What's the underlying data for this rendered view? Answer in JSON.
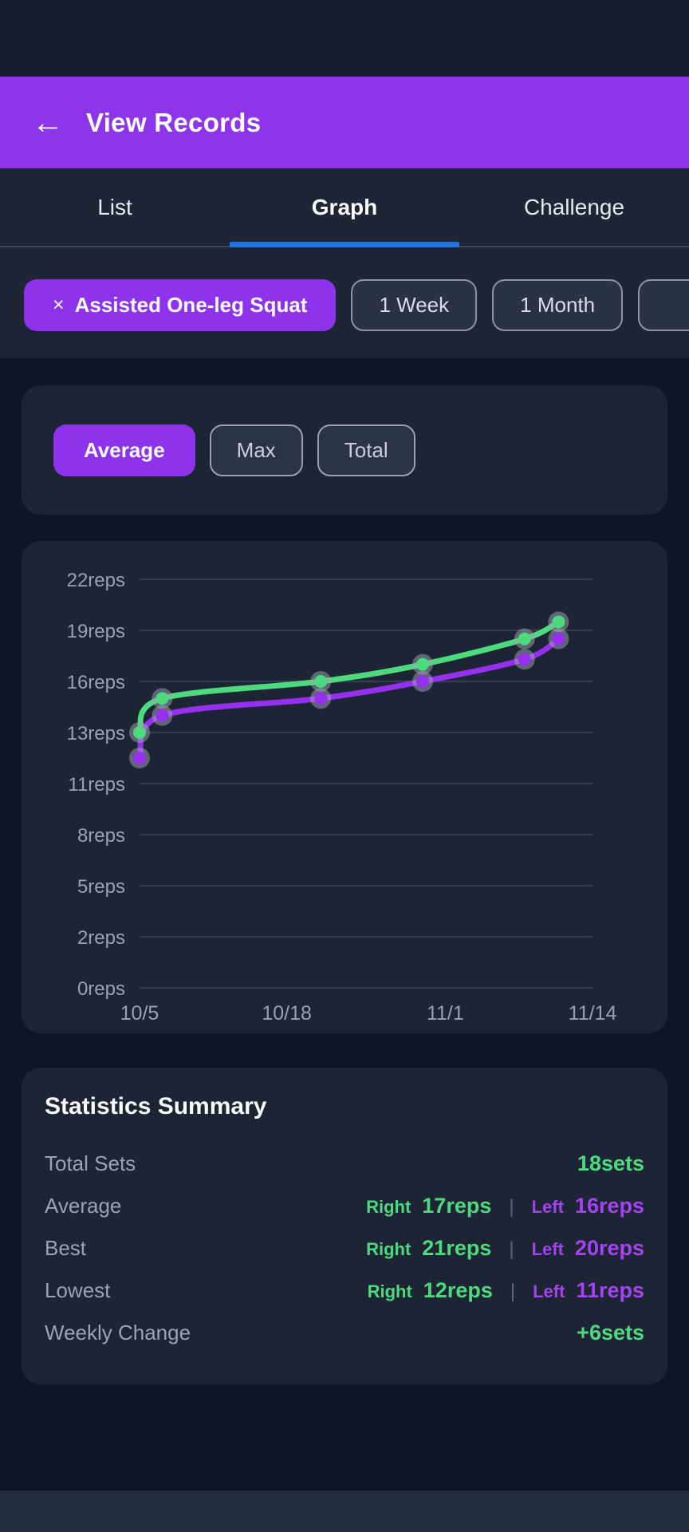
{
  "header": {
    "back_icon": "←",
    "title": "View Records"
  },
  "tabs": [
    {
      "label": "List",
      "active": false
    },
    {
      "label": "Graph",
      "active": true
    },
    {
      "label": "Challenge",
      "active": false
    }
  ],
  "filters": {
    "exercise_chip": {
      "close_icon": "×",
      "label": "Assisted One-leg Squat"
    },
    "period_chips": [
      "1 Week",
      "1 Month"
    ],
    "partial_chip_visible": true
  },
  "metric_toggle": [
    {
      "label": "Average",
      "active": true
    },
    {
      "label": "Max",
      "active": false
    },
    {
      "label": "Total",
      "active": false
    }
  ],
  "chart_data": {
    "type": "line",
    "unit": "reps",
    "grid": true,
    "legend": "none",
    "y_ticks": [
      22,
      19,
      16,
      13,
      11,
      8,
      5,
      2,
      0
    ],
    "y_tick_labels": [
      "22reps",
      "19reps",
      "16reps",
      "13reps",
      "11reps",
      "8reps",
      "5reps",
      "2reps",
      "0reps"
    ],
    "x_ticks": [
      {
        "label": "10/5",
        "day": 0
      },
      {
        "label": "10/18",
        "day": 13
      },
      {
        "label": "11/1",
        "day": 27
      },
      {
        "label": "11/14",
        "day": 40
      }
    ],
    "x_domain_days": [
      0,
      40
    ],
    "series": [
      {
        "name": "Left",
        "color": "#9531ee",
        "points": [
          {
            "date": "10/5",
            "day": 0,
            "value": 12
          },
          {
            "date": "10/7",
            "day": 2,
            "value": 14
          },
          {
            "date": "10/21",
            "day": 16,
            "value": 15
          },
          {
            "date": "10/30",
            "day": 25,
            "value": 16
          },
          {
            "date": "11/8",
            "day": 34,
            "value": 17.3
          },
          {
            "date": "11/11",
            "day": 37,
            "value": 18.5
          }
        ]
      },
      {
        "name": "Right",
        "color": "#4dd97e",
        "points": [
          {
            "date": "10/5",
            "day": 0,
            "value": 13
          },
          {
            "date": "10/7",
            "day": 2,
            "value": 15
          },
          {
            "date": "10/21",
            "day": 16,
            "value": 16
          },
          {
            "date": "10/30",
            "day": 25,
            "value": 17
          },
          {
            "date": "11/8",
            "day": 34,
            "value": 18.5
          },
          {
            "date": "11/11",
            "day": 37,
            "value": 19.5
          }
        ]
      }
    ]
  },
  "stats": {
    "title": "Statistics Summary",
    "right_label": "Right",
    "left_label": "Left",
    "separator": "|",
    "rows": [
      {
        "label": "Total Sets",
        "type": "single",
        "value": "18sets"
      },
      {
        "label": "Average",
        "type": "pair",
        "right": "17reps",
        "left": "16reps"
      },
      {
        "label": "Best",
        "type": "pair",
        "right": "21reps",
        "left": "20reps"
      },
      {
        "label": "Lowest",
        "type": "pair",
        "right": "12reps",
        "left": "11reps"
      },
      {
        "label": "Weekly Change",
        "type": "single",
        "value": "+6sets"
      }
    ]
  },
  "colors": {
    "header_purple": "#8c35ea",
    "accent_purple": "#8d33ec",
    "tab_indicator_blue": "#2273dd",
    "right_green": "#4dd97e",
    "left_purple_line": "#9531ee",
    "left_purple_text": "#a443f2",
    "card_bg": "#1d2535",
    "page_bg": "#0e1524",
    "grid_line": "#333d4f",
    "axis_text": "#97a1b4",
    "marker_halo": "rgba(160,166,178,0.5)"
  }
}
